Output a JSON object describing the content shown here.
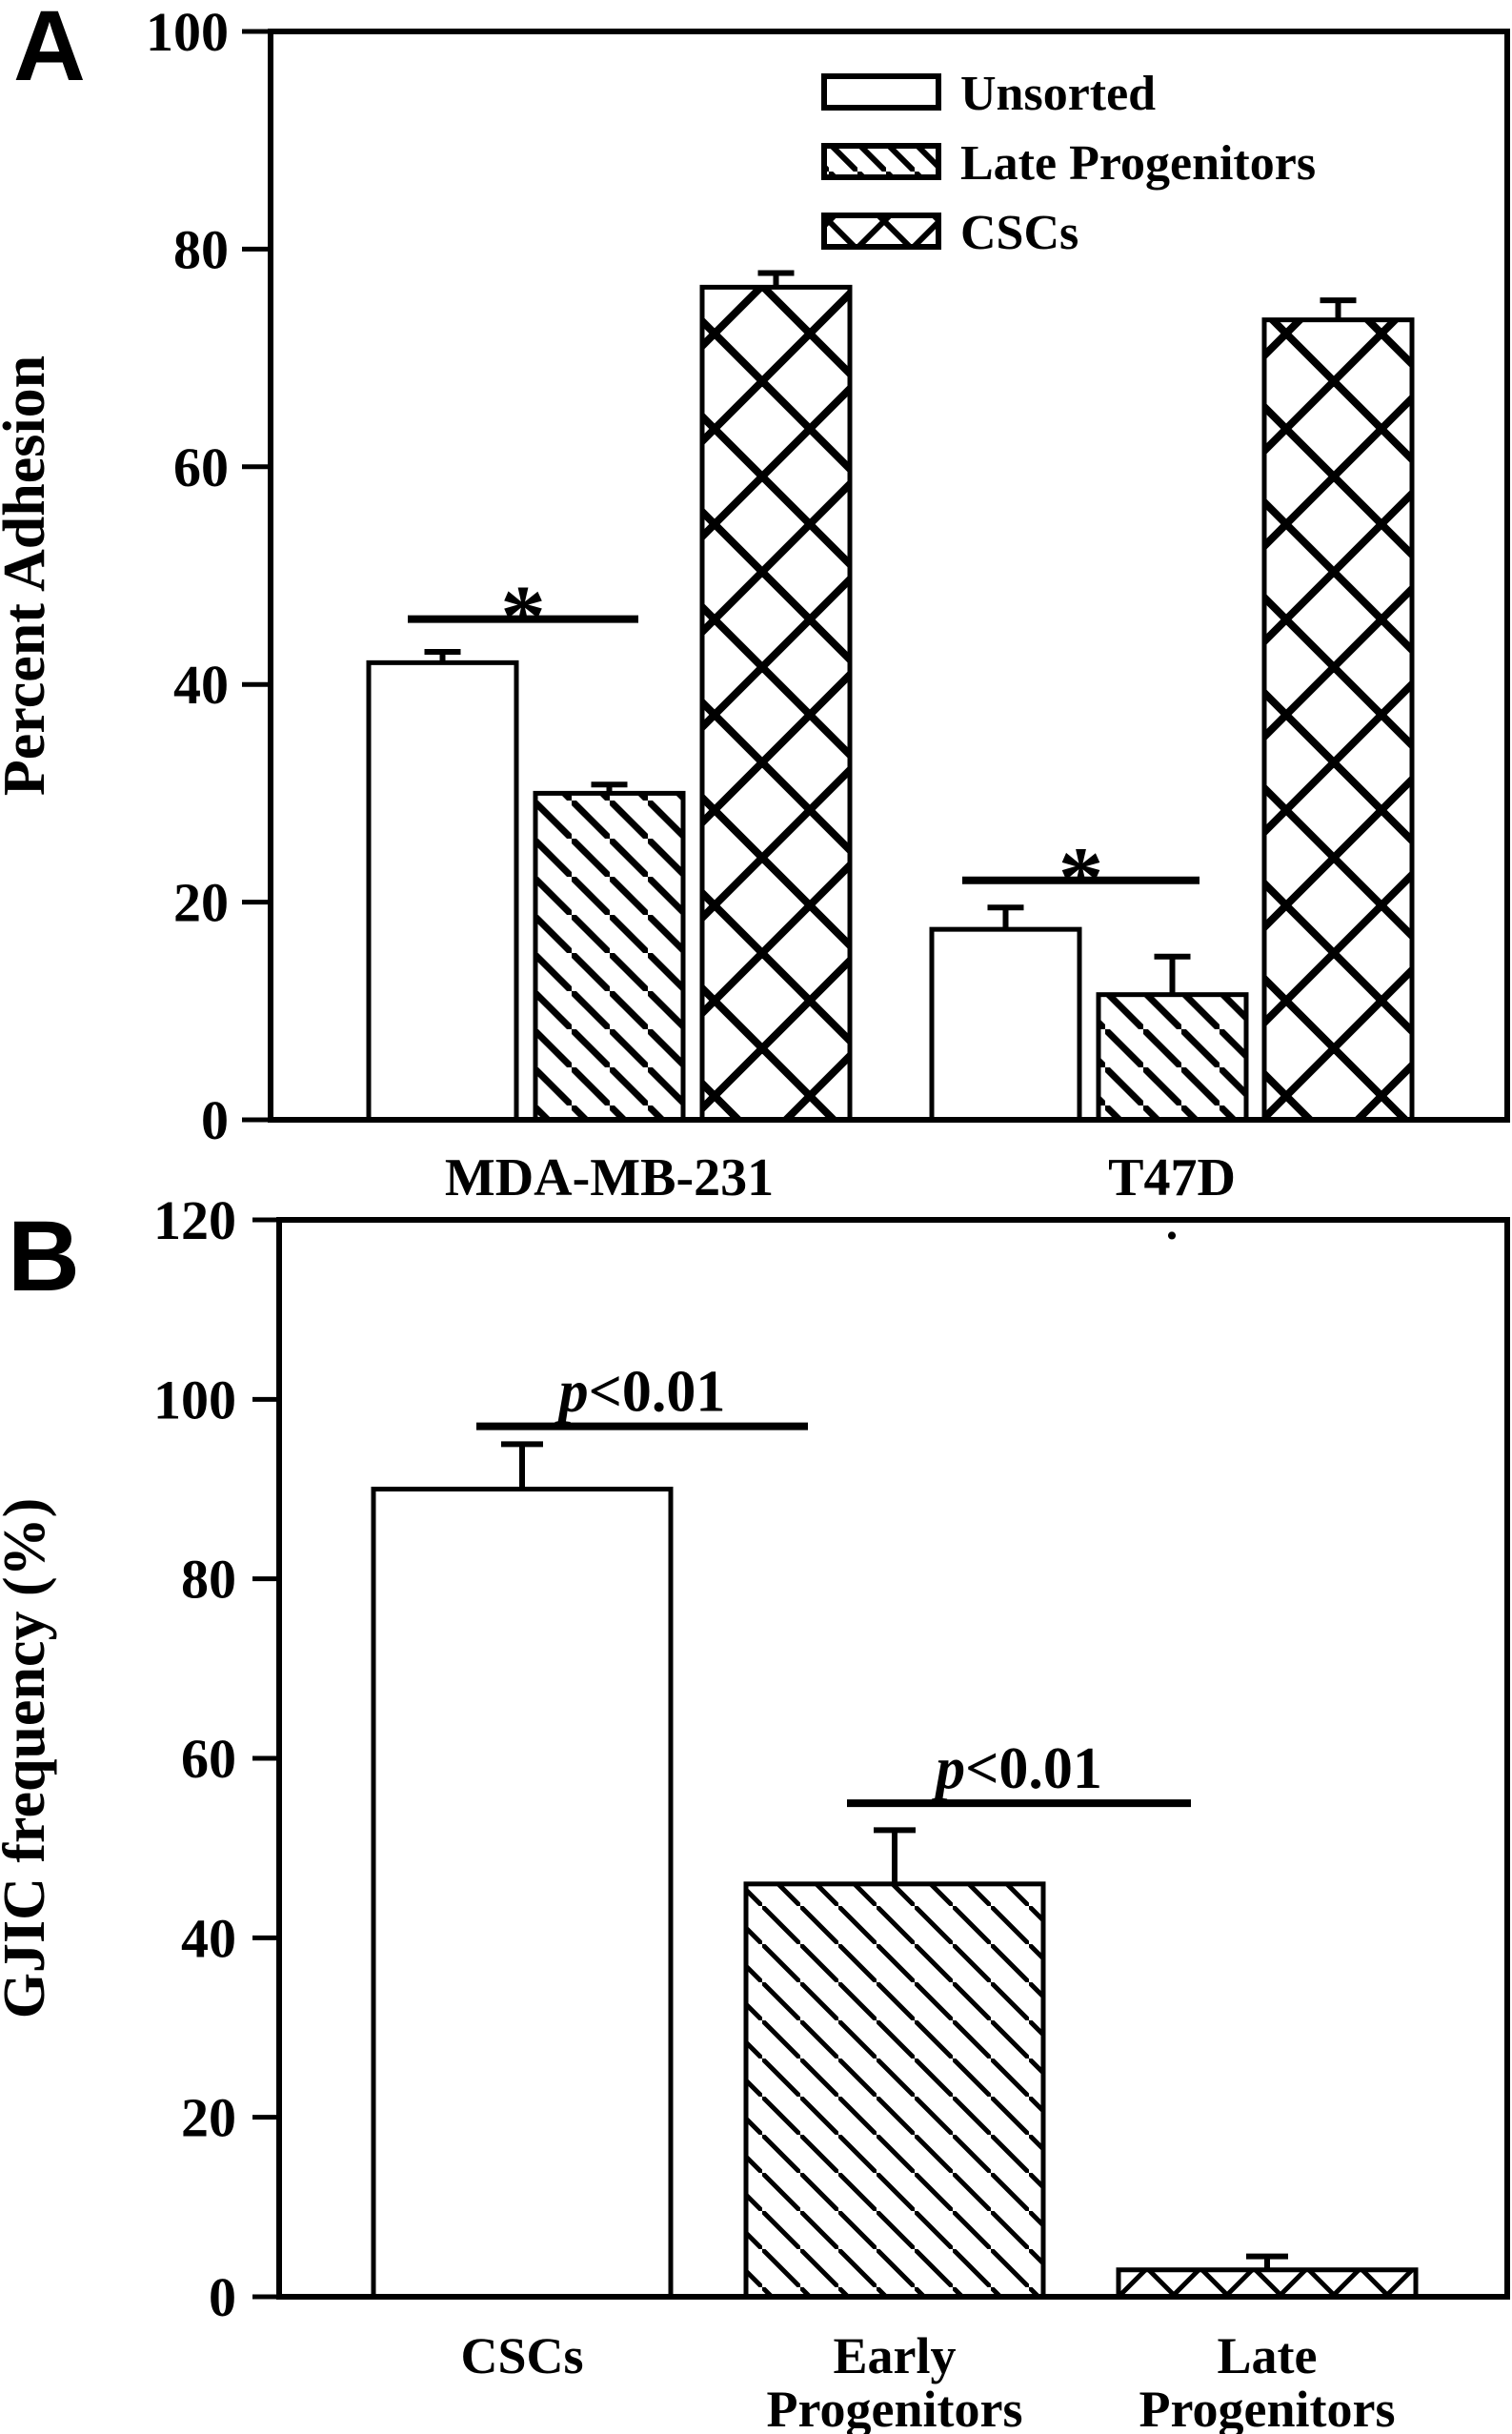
{
  "figure": {
    "background": "#ffffff",
    "ink_color": "#000000",
    "panels": [
      "A",
      "B"
    ]
  },
  "chart_data": [
    {
      "panel_label": "A",
      "type": "bar",
      "title": "",
      "xlabel": "",
      "ylabel": "Percent Adhesion",
      "ylim": [
        0,
        100
      ],
      "yticks": [
        0,
        20,
        40,
        60,
        80,
        100
      ],
      "grid": "off",
      "legend": {
        "position": "top-right",
        "entries": [
          {
            "label": "Unsorted",
            "pattern": "plain"
          },
          {
            "label": "Late Progenitors",
            "pattern": "diagonal-hatch"
          },
          {
            "label": "CSCs",
            "pattern": "crosshatch"
          }
        ]
      },
      "groups": [
        {
          "label": "MDA-MB-231",
          "note": "",
          "bars": [
            {
              "series": "Unsorted",
              "pattern": "plain",
              "value": 42,
              "error": 1
            },
            {
              "series": "Late Progenitors",
              "pattern": "diagonal-hatch",
              "value": 30,
              "error": 0.8
            },
            {
              "series": "CSCs",
              "pattern": "crosshatch",
              "value": 76.5,
              "error": 1.3
            }
          ],
          "significance": {
            "mark": "*",
            "level": 46,
            "between": [
              "Unsorted",
              "Late Progenitors"
            ]
          }
        },
        {
          "label": "T47D",
          "note": ".",
          "bars": [
            {
              "series": "Unsorted",
              "pattern": "plain",
              "value": 17.5,
              "error": 2
            },
            {
              "series": "Late Progenitors",
              "pattern": "diagonal-hatch",
              "value": 11.5,
              "error": 3.5
            },
            {
              "series": "CSCs",
              "pattern": "crosshatch",
              "value": 73.5,
              "error": 1.8
            }
          ],
          "significance": {
            "mark": "*",
            "level": 22,
            "between": [
              "Unsorted",
              "Late Progenitors"
            ]
          }
        }
      ]
    },
    {
      "panel_label": "B",
      "type": "bar",
      "title": "",
      "xlabel": "",
      "ylabel": "GJIC frequency (%)",
      "ylim": [
        0,
        120
      ],
      "yticks": [
        0,
        20,
        40,
        60,
        80,
        100,
        120
      ],
      "grid": "off",
      "bars": [
        {
          "label_lines": [
            "CSCs"
          ],
          "pattern": "plain",
          "value": 90,
          "error": 5
        },
        {
          "label_lines": [
            "Early",
            "Progenitors"
          ],
          "pattern": "diagonal-hatch",
          "value": 46,
          "error": 6
        },
        {
          "label_lines": [
            "Late",
            "Progenitors"
          ],
          "pattern": "crosshatch",
          "value": 3,
          "error": 1.5
        }
      ],
      "significance": [
        {
          "text": "p<0.01",
          "level": 97,
          "between": [
            "CSCs",
            "Early Progenitors"
          ]
        },
        {
          "text": "p<0.01",
          "level": 55,
          "between": [
            "Early Progenitors",
            "Late Progenitors"
          ]
        }
      ]
    }
  ]
}
